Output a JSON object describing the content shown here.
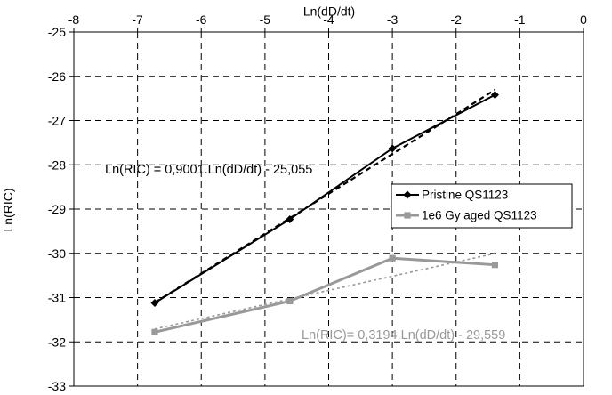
{
  "chart_data": {
    "type": "line",
    "title": "",
    "xlabel": "Ln(dD/dt)",
    "ylabel": "Ln(RIC)",
    "x_axis_position": "top",
    "xlim": [
      -8,
      0
    ],
    "ylim": [
      -33,
      -25
    ],
    "xticks": [
      -8,
      -7,
      -6,
      -5,
      -4,
      -3,
      -2,
      -1,
      0
    ],
    "yticks": [
      -25,
      -26,
      -27,
      -28,
      -29,
      -30,
      -31,
      -32,
      -33
    ],
    "grid": true,
    "grid_style": "dashed",
    "legend_position": "right",
    "series": [
      {
        "name": "Pristine QS1123",
        "color": "#000000",
        "marker": "diamond",
        "x": [
          -6.73,
          -4.61,
          -3.0,
          -1.39
        ],
        "y": [
          -31.12,
          -29.23,
          -27.63,
          -26.42
        ]
      },
      {
        "name": "1e6 Gy aged QS1123",
        "color": "#999999",
        "marker": "square",
        "x": [
          -6.73,
          -4.61,
          -3.0,
          -1.39
        ],
        "y": [
          -31.78,
          -31.08,
          -30.11,
          -30.26
        ]
      }
    ],
    "trendlines": [
      {
        "series": "Pristine QS1123",
        "slope": 0.9001,
        "intercept": -25.055,
        "x_range": [
          -6.73,
          -1.39
        ],
        "color": "#000000",
        "style": "dashed",
        "label": "Ln(RIC) = 0,9001.Ln(dD/dt) - 25,055",
        "label_color": "#000000"
      },
      {
        "series": "1e6 Gy aged QS1123",
        "slope": 0.3194,
        "intercept": -29.559,
        "x_range": [
          -6.73,
          -1.39
        ],
        "color": "#999999",
        "style": "dotted",
        "label": "Ln(RIC)= 0,3194.Ln(dD/dt) - 29,559",
        "label_color": "#999999"
      }
    ]
  }
}
